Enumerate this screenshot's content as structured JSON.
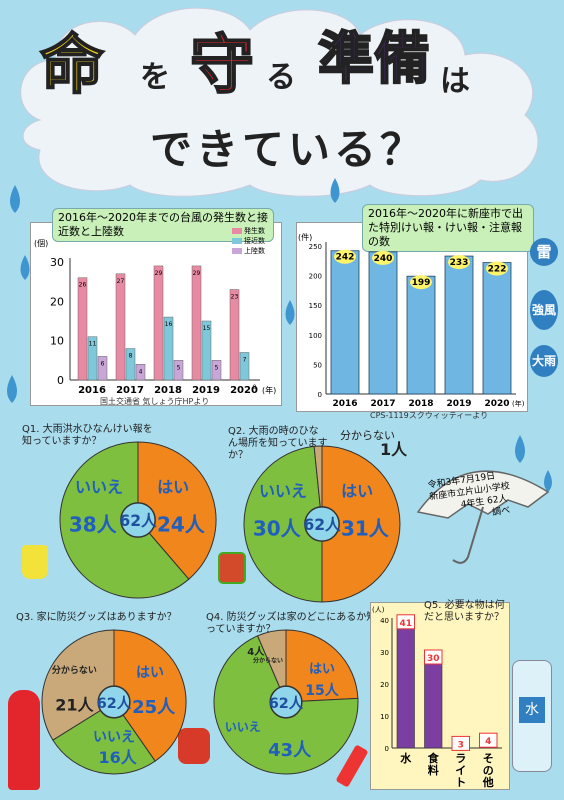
{
  "title": {
    "part1": "命",
    "part2": "を",
    "part3": "守",
    "part4": "る",
    "part5": "準備",
    "part6": "は",
    "line2": "できている？"
  },
  "colors": {
    "bg": "#a9dced",
    "pink": "#e98aa3",
    "blue": "#7fc8dc",
    "purple": "#c8a6d8",
    "orange": "#f0861c",
    "green": "#7fbf3f",
    "tan": "#c9a97a",
    "yellow_center": "#8fd6ea",
    "bar_blue": "#6fb7e2",
    "bar_purple": "#7a3fa0"
  },
  "chart1": {
    "caption": "2016年〜2020年までの台風の発生数と接近数と上陸数",
    "unit": "(個)",
    "xunit": "(年)",
    "source": "国土交通省 気しょう庁HPより"
  },
  "chart2": {
    "caption": "2016年〜2020年に新座市で出た特別けい報・けい報・注意報の数",
    "unit": "(件)",
    "xunit": "(年)",
    "source": "CPS-1119スクウィッティーより",
    "side_labels": [
      "雷",
      "強風",
      "大雨"
    ]
  },
  "q1": {
    "text": "Q1. 大雨洪水ひなんけい報を知っていますか？",
    "center": "62人",
    "yes": "はい",
    "no": "いいえ",
    "yes_n": "24人",
    "no_n": "38人"
  },
  "q2": {
    "text": "Q2. 大雨の時のひなん場所を知っていますか？",
    "center": "62人",
    "yes": "はい",
    "no": "いいえ",
    "yes_n": "31人",
    "no_n": "30人",
    "unknown": "分からない",
    "unknown_n": "1人"
  },
  "q3": {
    "text": "Q3. 家に防災グッズはありますか？",
    "center": "62人",
    "yes": "はい",
    "no": "いいえ",
    "unknown": "分からない",
    "yes_n": "25人",
    "no_n": "16人",
    "unknown_n": "21人"
  },
  "q4": {
    "text": "Q4. 防災グッズは家のどこにあるか知っていますか？",
    "center": "62人",
    "yes": "はい",
    "no": "いいえ",
    "unknown": "分からない",
    "yes_n": "15人",
    "no_n": "43人",
    "unknown_n": "4人"
  },
  "q5": {
    "text": "Q5. 必要な物は何だと思いますか？",
    "unit": "(人)"
  },
  "umbrella": {
    "line1": "令和3年7月19日",
    "line2": "新座市立片山小学校",
    "line3": "4年生 62人",
    "line4": "調べ"
  },
  "chart_data": [
    {
      "type": "bar",
      "categories": [
        "2016",
        "2017",
        "2018",
        "2019",
        "2020"
      ],
      "series": [
        {
          "name": "発生数",
          "values": [
            26,
            27,
            29,
            29,
            23
          ]
        },
        {
          "name": "接近数",
          "values": [
            11,
            8,
            16,
            15,
            7
          ]
        },
        {
          "name": "上陸数",
          "values": [
            6,
            4,
            5,
            5,
            0
          ]
        }
      ],
      "ylim": [
        0,
        30
      ],
      "yticks": [
        0,
        10,
        20,
        30
      ]
    },
    {
      "type": "bar",
      "categories": [
        "2016",
        "2017",
        "2018",
        "2019",
        "2020"
      ],
      "values": [
        242,
        240,
        199,
        233,
        222
      ],
      "ylim": [
        0,
        250
      ],
      "yticks": [
        0,
        50,
        100,
        150,
        200,
        250
      ]
    },
    {
      "type": "pie",
      "labels": [
        "はい",
        "いいえ"
      ],
      "values": [
        24,
        38
      ]
    },
    {
      "type": "pie",
      "labels": [
        "はい",
        "いいえ",
        "分からない"
      ],
      "values": [
        31,
        30,
        1
      ]
    },
    {
      "type": "pie",
      "labels": [
        "はい",
        "いいえ",
        "分からない"
      ],
      "values": [
        25,
        16,
        21
      ]
    },
    {
      "type": "pie",
      "labels": [
        "はい",
        "いいえ",
        "分からない"
      ],
      "values": [
        15,
        43,
        4
      ]
    },
    {
      "type": "bar",
      "categories": [
        "水",
        "食料",
        "ライト",
        "その他"
      ],
      "values": [
        41,
        30,
        3,
        4
      ],
      "ylim": [
        0,
        40
      ],
      "yticks": [
        0,
        10,
        20,
        30,
        40
      ]
    }
  ]
}
